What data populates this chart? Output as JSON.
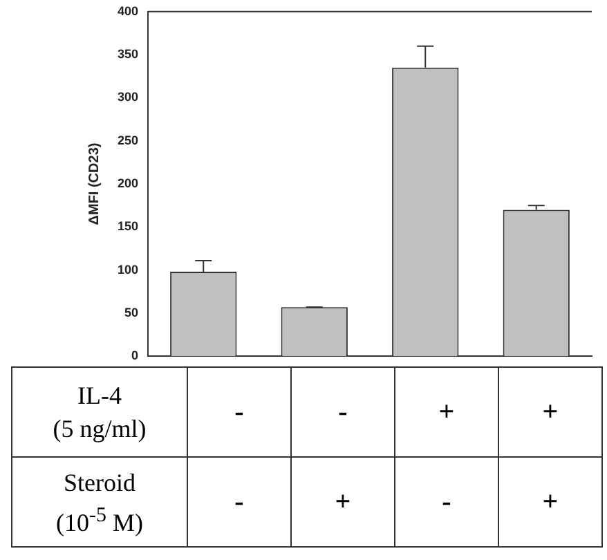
{
  "chart_data": {
    "type": "bar",
    "ylabel": "ΔMFI (CD23)",
    "categories": [
      "-\n-",
      "-\n+",
      "+\n-",
      "+\n+"
    ],
    "values": [
      98,
      57,
      335,
      170
    ],
    "errors": [
      13,
      0,
      25,
      5
    ],
    "color": "#c0c0c0",
    "ylim": [
      0,
      400
    ],
    "yticks": [
      0,
      50,
      100,
      150,
      200,
      250,
      300,
      350,
      400
    ],
    "grid": false,
    "annotations": [
      "IL-4 (5 ng/ml)",
      "Steroid (10$^{-5}$ M)"
    ]
  }
}
